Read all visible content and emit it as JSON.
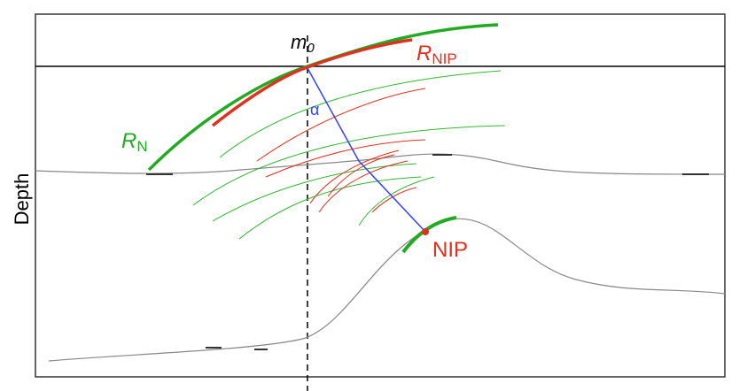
{
  "labels": {
    "m0": {
      "main": "m",
      "sub": "0"
    },
    "r_nip": {
      "main": "R",
      "sub": "NIP"
    },
    "r_n": {
      "main": "R",
      "sub": "N"
    },
    "alpha": "α",
    "nip": "NIP",
    "depth": "Depth"
  }
}
